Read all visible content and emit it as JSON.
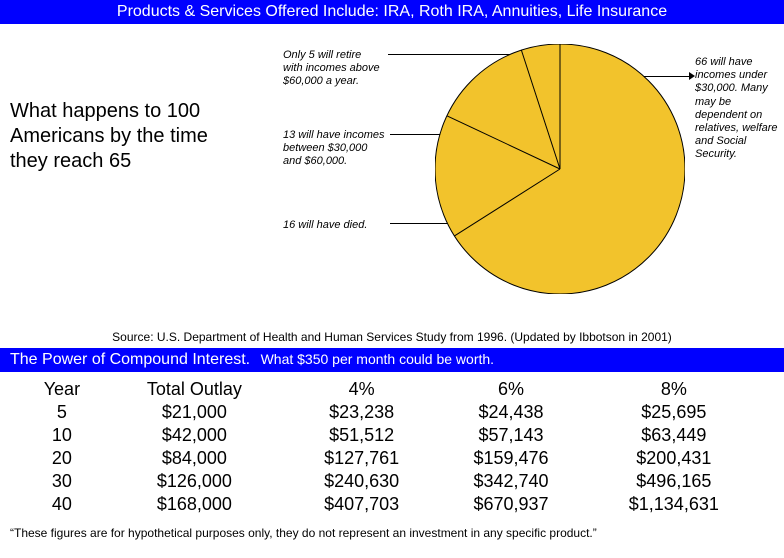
{
  "banner_top": "Products & Services Offered Include:  IRA, Roth IRA, Annuities, Life Insurance",
  "chart": {
    "title": "What happens to 100 Americans by the time they reach 65",
    "type": "pie",
    "radius": 125,
    "fill_color": "#f2c32c",
    "stroke_color": "#000000",
    "background_color": "#ffffff",
    "slices": [
      {
        "label": "66 will have incomes under $30,000.  Many may be dependent on relatives, welfare and Social Security.",
        "value": 66,
        "start_deg": -90,
        "end_deg": 147.6
      },
      {
        "label": "16 will have died.",
        "value": 16,
        "start_deg": 147.6,
        "end_deg": 205.2
      },
      {
        "label": "13 will have incomes between $30,000 and $60,000.",
        "value": 13,
        "start_deg": 205.2,
        "end_deg": 252.0
      },
      {
        "label": "Only 5 will retire with incomes above $60,000 a year.",
        "value": 5,
        "start_deg": 252.0,
        "end_deg": 270.0
      }
    ],
    "annotation_fontsize": 11,
    "title_fontsize": 20
  },
  "source": "Source: U.S. Department of Health and Human Services Study from 1996.  (Updated by Ibbotson in 2001)",
  "banner2_main": "The Power of Compound Interest.",
  "banner2_sub": "What $350 per month could be worth.",
  "table": {
    "columns": [
      "Year",
      "Total Outlay",
      "4%",
      "6%",
      "8%"
    ],
    "rows": [
      [
        "5",
        "$21,000",
        "$23,238",
        "$24,438",
        "$25,695"
      ],
      [
        "10",
        "$42,000",
        "$51,512",
        "$57,143",
        "$63,449"
      ],
      [
        "20",
        "$84,000",
        "$127,761",
        "$159,476",
        "$200,431"
      ],
      [
        "30",
        "$126,000",
        "$240,630",
        "$342,740",
        "$496,165"
      ],
      [
        "40",
        "$168,000",
        "$407,703",
        "$670,937",
        "$1,134,631"
      ]
    ],
    "fontsize": 18
  },
  "disclaimer": "“These figures are for hypothetical purposes only, they do not represent an investment in any specific product.”"
}
